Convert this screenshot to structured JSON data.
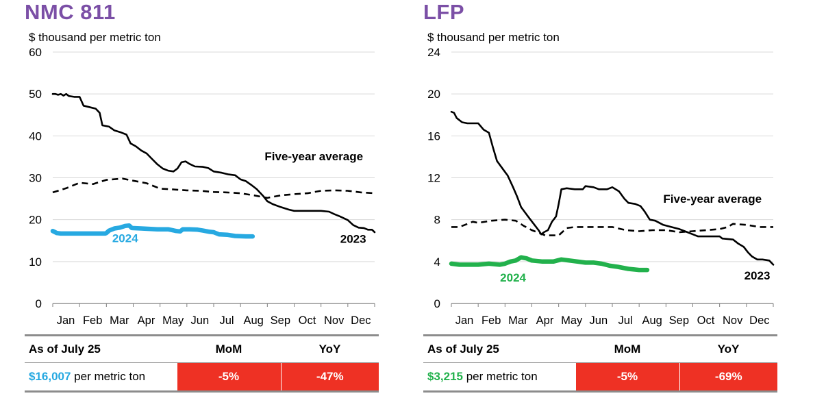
{
  "panels": [
    {
      "title": "NMC 811",
      "unit": "$ thousand per metric ton",
      "table": {
        "as_of": "As of July 25",
        "mom_header": "MoM",
        "yoy_header": "YoY",
        "price": "$16,007",
        "price_suffix": " per metric ton",
        "price_color": "#27a9e1",
        "mom": "-5%",
        "yoy": "-47%"
      }
    },
    {
      "title": "LFP",
      "unit": "$ thousand per metric ton",
      "table": {
        "as_of": "As of July 25",
        "mom_header": "MoM",
        "yoy_header": "YoY",
        "price": "$3,215",
        "price_suffix": " per metric ton",
        "price_color": "#22b14c",
        "mom": "-5%",
        "yoy": "-69%"
      }
    }
  ],
  "chart_data": [
    {
      "type": "line",
      "title": "NMC 811",
      "ylabel": "$ thousand per metric ton",
      "ylim": [
        0,
        60
      ],
      "yticks": [
        0,
        10,
        20,
        30,
        40,
        50,
        60
      ],
      "grid": true,
      "x_domain": [
        0,
        12
      ],
      "xticks": [
        "Jan",
        "Feb",
        "Mar",
        "Apr",
        "May",
        "Jun",
        "Jul",
        "Aug",
        "Sep",
        "Oct",
        "Nov",
        "Dec"
      ],
      "series": [
        {
          "name": "2023",
          "color": "#000000",
          "style": "solid",
          "label_at": [
            11.2,
            14.5
          ],
          "points": [
            [
              0,
              50
            ],
            [
              0.1,
              50
            ],
            [
              0.2,
              49.8
            ],
            [
              0.3,
              50
            ],
            [
              0.4,
              49.6
            ],
            [
              0.5,
              50
            ],
            [
              0.6,
              49.5
            ],
            [
              0.8,
              49.3
            ],
            [
              1.0,
              49.3
            ],
            [
              1.15,
              47.2
            ],
            [
              1.4,
              46.8
            ],
            [
              1.6,
              46.5
            ],
            [
              1.75,
              45.5
            ],
            [
              1.85,
              42.5
            ],
            [
              2.1,
              42.2
            ],
            [
              2.3,
              41.3
            ],
            [
              2.55,
              40.8
            ],
            [
              2.75,
              40.3
            ],
            [
              2.9,
              38.2
            ],
            [
              3.1,
              37.5
            ],
            [
              3.3,
              36.5
            ],
            [
              3.5,
              35.8
            ],
            [
              3.7,
              34.5
            ],
            [
              3.9,
              33.2
            ],
            [
              4.1,
              32.2
            ],
            [
              4.3,
              31.7
            ],
            [
              4.5,
              31.5
            ],
            [
              4.65,
              32.2
            ],
            [
              4.8,
              33.7
            ],
            [
              4.95,
              33.9
            ],
            [
              5.1,
              33.3
            ],
            [
              5.3,
              32.7
            ],
            [
              5.6,
              32.6
            ],
            [
              5.8,
              32.3
            ],
            [
              6.0,
              31.5
            ],
            [
              6.3,
              31.2
            ],
            [
              6.55,
              30.8
            ],
            [
              6.8,
              30.6
            ],
            [
              7.0,
              29.6
            ],
            [
              7.2,
              29.2
            ],
            [
              7.4,
              28.3
            ],
            [
              7.6,
              27.3
            ],
            [
              7.85,
              25.6
            ],
            [
              8.0,
              24.4
            ],
            [
              8.2,
              23.7
            ],
            [
              8.5,
              23.0
            ],
            [
              8.8,
              22.4
            ],
            [
              9.0,
              22.1
            ],
            [
              9.5,
              22.1
            ],
            [
              10.0,
              22.1
            ],
            [
              10.3,
              21.9
            ],
            [
              10.5,
              21.3
            ],
            [
              10.7,
              20.8
            ],
            [
              11.0,
              19.9
            ],
            [
              11.2,
              18.7
            ],
            [
              11.4,
              18.1
            ],
            [
              11.6,
              18.0
            ],
            [
              11.75,
              17.6
            ],
            [
              11.9,
              17.6
            ],
            [
              12.0,
              17.0
            ]
          ]
        },
        {
          "name": "Five-year average",
          "color": "#000000",
          "style": "dashed",
          "label_at": [
            7.9,
            34.2
          ],
          "points": [
            [
              0,
              26.5
            ],
            [
              0.5,
              27.5
            ],
            [
              1.0,
              28.8
            ],
            [
              1.5,
              28.5
            ],
            [
              2.0,
              29.5
            ],
            [
              2.6,
              29.8
            ],
            [
              3.0,
              29.3
            ],
            [
              3.5,
              28.7
            ],
            [
              4.0,
              27.4
            ],
            [
              4.5,
              27.2
            ],
            [
              5.0,
              27.0
            ],
            [
              5.5,
              26.9
            ],
            [
              6.0,
              26.6
            ],
            [
              6.5,
              26.5
            ],
            [
              7.0,
              26.3
            ],
            [
              7.5,
              25.8
            ],
            [
              8.0,
              25.2
            ],
            [
              8.5,
              25.8
            ],
            [
              9.0,
              26.1
            ],
            [
              9.5,
              26.3
            ],
            [
              10.0,
              26.9
            ],
            [
              10.5,
              27.0
            ],
            [
              11.0,
              26.9
            ],
            [
              11.5,
              26.5
            ],
            [
              12.0,
              26.3
            ]
          ]
        },
        {
          "name": "2024",
          "color": "#27a9e1",
          "style": "thick",
          "label_at": [
            2.7,
            14.6
          ],
          "points": [
            [
              0,
              17.3
            ],
            [
              0.15,
              16.8
            ],
            [
              0.3,
              16.7
            ],
            [
              1.0,
              16.7
            ],
            [
              1.5,
              16.7
            ],
            [
              1.95,
              16.7
            ],
            [
              2.0,
              16.8
            ],
            [
              2.1,
              17.4
            ],
            [
              2.3,
              17.9
            ],
            [
              2.5,
              18.1
            ],
            [
              2.7,
              18.5
            ],
            [
              2.85,
              18.6
            ],
            [
              2.95,
              18.0
            ],
            [
              3.3,
              17.9
            ],
            [
              3.6,
              17.8
            ],
            [
              3.9,
              17.7
            ],
            [
              4.3,
              17.7
            ],
            [
              4.6,
              17.3
            ],
            [
              4.75,
              17.2
            ],
            [
              4.85,
              17.7
            ],
            [
              5.1,
              17.7
            ],
            [
              5.4,
              17.6
            ],
            [
              5.6,
              17.4
            ],
            [
              5.85,
              17.1
            ],
            [
              6.0,
              17.0
            ],
            [
              6.2,
              16.5
            ],
            [
              6.5,
              16.4
            ],
            [
              6.8,
              16.1
            ],
            [
              7.2,
              16.0
            ],
            [
              7.45,
              16.0
            ]
          ]
        }
      ]
    },
    {
      "type": "line",
      "title": "LFP",
      "ylabel": "$ thousand per metric ton",
      "ylim": [
        0,
        24
      ],
      "yticks": [
        0,
        4,
        8,
        12,
        16,
        20,
        24
      ],
      "grid": true,
      "x_domain": [
        0,
        12
      ],
      "xticks": [
        "Jan",
        "Feb",
        "Mar",
        "Apr",
        "May",
        "Jun",
        "Jul",
        "Aug",
        "Sep",
        "Oct",
        "Nov",
        "Dec"
      ],
      "series": [
        {
          "name": "2023",
          "color": "#000000",
          "style": "solid",
          "label_at": [
            11.4,
            2.3
          ],
          "points": [
            [
              0,
              18.3
            ],
            [
              0.1,
              18.2
            ],
            [
              0.2,
              17.7
            ],
            [
              0.4,
              17.3
            ],
            [
              0.6,
              17.2
            ],
            [
              0.8,
              17.2
            ],
            [
              1.0,
              17.2
            ],
            [
              1.2,
              16.6
            ],
            [
              1.4,
              16.3
            ],
            [
              1.55,
              14.9
            ],
            [
              1.7,
              13.6
            ],
            [
              1.9,
              12.9
            ],
            [
              2.1,
              12.2
            ],
            [
              2.3,
              11.1
            ],
            [
              2.45,
              10.2
            ],
            [
              2.6,
              9.2
            ],
            [
              2.8,
              8.5
            ],
            [
              2.95,
              8.0
            ],
            [
              3.1,
              7.5
            ],
            [
              3.25,
              7.0
            ],
            [
              3.35,
              6.6
            ],
            [
              3.45,
              6.8
            ],
            [
              3.6,
              7.0
            ],
            [
              3.75,
              7.8
            ],
            [
              3.9,
              8.3
            ],
            [
              4.0,
              9.5
            ],
            [
              4.1,
              10.9
            ],
            [
              4.3,
              11.0
            ],
            [
              4.6,
              10.9
            ],
            [
              4.9,
              10.9
            ],
            [
              5.0,
              11.2
            ],
            [
              5.3,
              11.1
            ],
            [
              5.5,
              10.9
            ],
            [
              5.8,
              10.9
            ],
            [
              6.0,
              11.1
            ],
            [
              6.25,
              10.7
            ],
            [
              6.45,
              10.0
            ],
            [
              6.6,
              9.6
            ],
            [
              6.85,
              9.5
            ],
            [
              7.05,
              9.3
            ],
            [
              7.2,
              8.8
            ],
            [
              7.4,
              8.0
            ],
            [
              7.6,
              7.9
            ],
            [
              7.9,
              7.5
            ],
            [
              8.2,
              7.3
            ],
            [
              8.5,
              7.1
            ],
            [
              8.8,
              6.8
            ],
            [
              9.0,
              6.6
            ],
            [
              9.2,
              6.4
            ],
            [
              9.6,
              6.4
            ],
            [
              10.0,
              6.4
            ],
            [
              10.1,
              6.2
            ],
            [
              10.5,
              6.1
            ],
            [
              10.7,
              5.7
            ],
            [
              10.9,
              5.4
            ],
            [
              11.05,
              4.9
            ],
            [
              11.2,
              4.5
            ],
            [
              11.4,
              4.2
            ],
            [
              11.6,
              4.2
            ],
            [
              11.85,
              4.1
            ],
            [
              12.0,
              3.7
            ]
          ]
        },
        {
          "name": "Five-year average",
          "color": "#000000",
          "style": "dashed",
          "label_at": [
            7.9,
            9.6
          ],
          "points": [
            [
              0,
              7.3
            ],
            [
              0.3,
              7.3
            ],
            [
              0.5,
              7.5
            ],
            [
              0.8,
              7.8
            ],
            [
              1.0,
              7.7
            ],
            [
              1.5,
              7.9
            ],
            [
              2.0,
              8.0
            ],
            [
              2.4,
              7.9
            ],
            [
              2.7,
              7.4
            ],
            [
              3.0,
              7.0
            ],
            [
              3.5,
              6.5
            ],
            [
              4.0,
              6.5
            ],
            [
              4.3,
              7.2
            ],
            [
              4.6,
              7.3
            ],
            [
              5.0,
              7.3
            ],
            [
              5.5,
              7.3
            ],
            [
              6.0,
              7.3
            ],
            [
              6.5,
              7.0
            ],
            [
              7.0,
              6.9
            ],
            [
              7.5,
              7.0
            ],
            [
              8.0,
              7.0
            ],
            [
              8.5,
              6.8
            ],
            [
              9.0,
              6.9
            ],
            [
              9.5,
              7.0
            ],
            [
              10.0,
              7.1
            ],
            [
              10.3,
              7.3
            ],
            [
              10.5,
              7.6
            ],
            [
              11.0,
              7.5
            ],
            [
              11.5,
              7.3
            ],
            [
              12.0,
              7.3
            ]
          ]
        },
        {
          "name": "2024",
          "color": "#22b14c",
          "style": "thick",
          "label_at": [
            2.3,
            2.1
          ],
          "points": [
            [
              0,
              3.8
            ],
            [
              0.3,
              3.7
            ],
            [
              0.6,
              3.7
            ],
            [
              1.0,
              3.7
            ],
            [
              1.4,
              3.8
            ],
            [
              1.8,
              3.7
            ],
            [
              2.0,
              3.8
            ],
            [
              2.2,
              4.0
            ],
            [
              2.4,
              4.1
            ],
            [
              2.6,
              4.4
            ],
            [
              2.8,
              4.3
            ],
            [
              3.0,
              4.1
            ],
            [
              3.4,
              4.0
            ],
            [
              3.8,
              4.0
            ],
            [
              4.1,
              4.2
            ],
            [
              4.4,
              4.1
            ],
            [
              4.7,
              4.0
            ],
            [
              5.0,
              3.9
            ],
            [
              5.3,
              3.9
            ],
            [
              5.6,
              3.8
            ],
            [
              5.9,
              3.6
            ],
            [
              6.2,
              3.5
            ],
            [
              6.6,
              3.3
            ],
            [
              7.0,
              3.2
            ],
            [
              7.3,
              3.2
            ]
          ]
        }
      ]
    }
  ]
}
